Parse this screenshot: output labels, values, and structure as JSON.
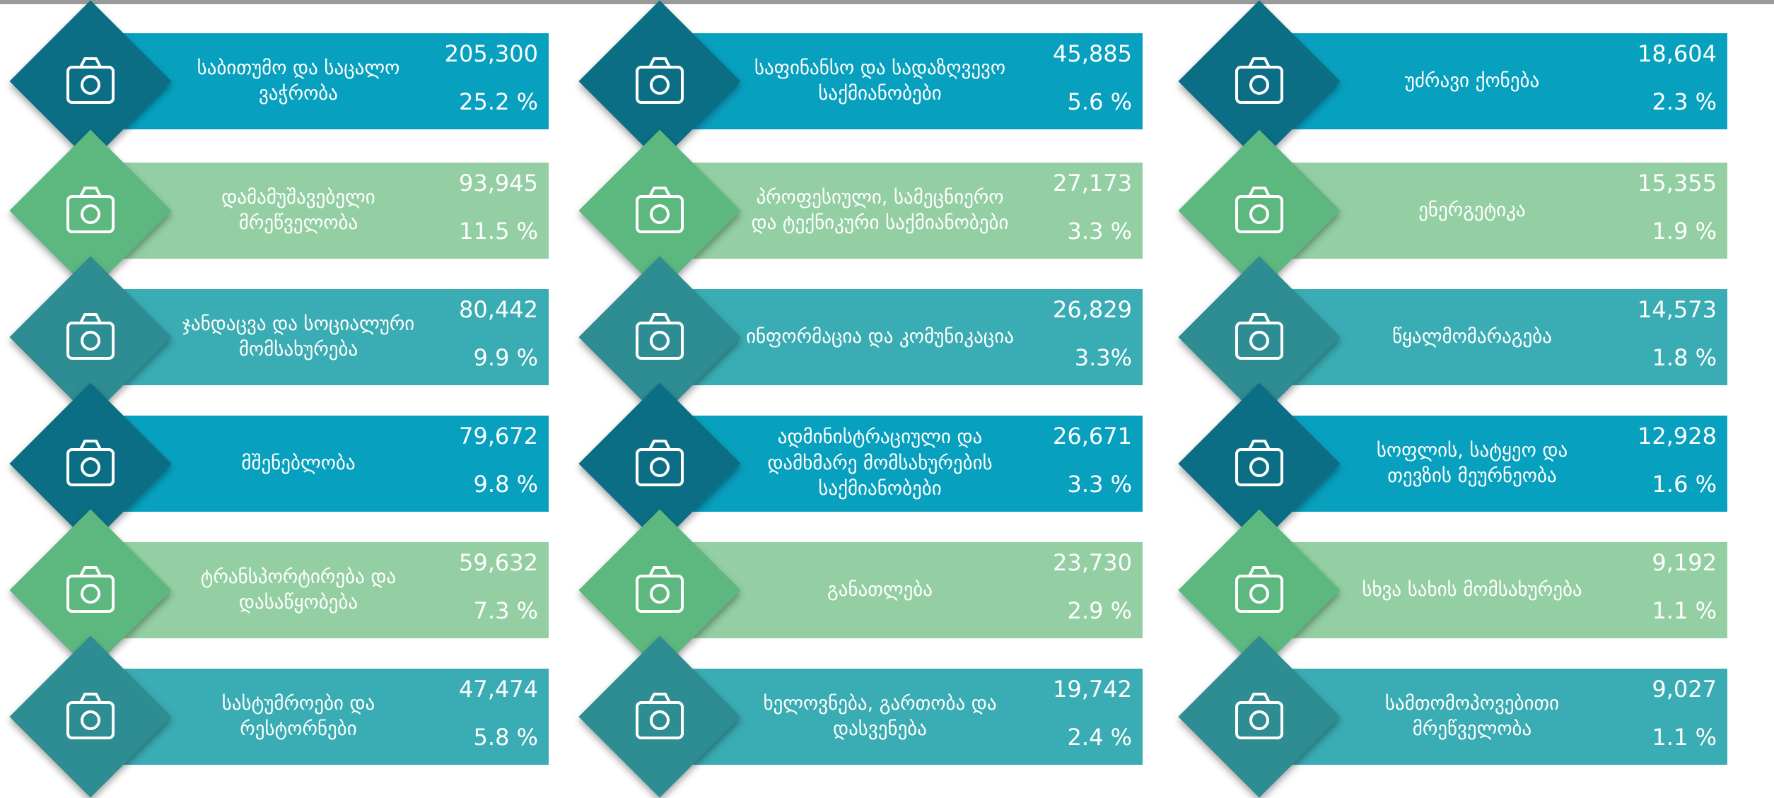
{
  "items": [
    {
      "label": "საბითუმო და საცალო ვაჭრობა",
      "value": "205,300",
      "percent": "25.2 %"
    },
    {
      "label": "დამამუშავებელი მრეწველობა",
      "value": "93,945",
      "percent": "11.5 %"
    },
    {
      "label": "ჯანდაცვა და სოციალური მომსახურება",
      "value": "80,442",
      "percent": "9.9 %"
    },
    {
      "label": "მშენებლობა",
      "value": "79,672",
      "percent": "9.8 %"
    },
    {
      "label": "ტრანსპორტირება და დასაწყობება",
      "value": "59,632",
      "percent": "7.3 %"
    },
    {
      "label": "სასტუმროები და რესტორნები",
      "value": "47,474",
      "percent": "5.8 %"
    },
    {
      "label": "საფინანსო და სადაზღვევო საქმიანობები",
      "value": "45,885",
      "percent": "5.6 %"
    },
    {
      "label": "პროფესიული, სამეცნიერო და ტექნიკური საქმიანობები",
      "value": "27,173",
      "percent": "3.3 %"
    },
    {
      "label": "ინფორმაცია და კომუნიკაცია",
      "value": "26,829",
      "percent": "3.3%"
    },
    {
      "label": "ადმინისტრაციული და დამხმარე მომსახურების საქმიანობები",
      "value": "26,671",
      "percent": "3.3 %"
    },
    {
      "label": "განათლება",
      "value": "23,730",
      "percent": "2.9 %"
    },
    {
      "label": "ხელოვნება, გართობა და დასვენება",
      "value": "19,742",
      "percent": "2.4 %"
    },
    {
      "label": "უძრავი ქონება",
      "value": "18,604",
      "percent": "2.3 %"
    },
    {
      "label": "ენერგეტიკა",
      "value": "15,355",
      "percent": "1.9 %"
    },
    {
      "label": "წყალმომარაგება",
      "value": "14,573",
      "percent": "1.8 %"
    },
    {
      "label": "სოფლის, სატყეო და თევზის მეურნეობა",
      "value": "12,928",
      "percent": "1.6 %"
    },
    {
      "label": "სხვა სახის მომსახურება",
      "value": "9,192",
      "percent": "1.1 %"
    },
    {
      "label": "სამთომოპოვებითი მრეწველობა",
      "value": "9,027",
      "percent": "1.1 %"
    }
  ],
  "row_styles": [
    {
      "bar": "#08a0bf",
      "diamond": "#0b6e85"
    },
    {
      "bar": "#93cfa3",
      "diamond": "#5db87f"
    },
    {
      "bar": "#3aacb3",
      "diamond": "#2e8c93"
    },
    {
      "bar": "#08a0bf",
      "diamond": "#0b6e85"
    },
    {
      "bar": "#93cfa3",
      "diamond": "#5db87f"
    },
    {
      "bar": "#3aacb3",
      "diamond": "#2e8c93"
    }
  ]
}
